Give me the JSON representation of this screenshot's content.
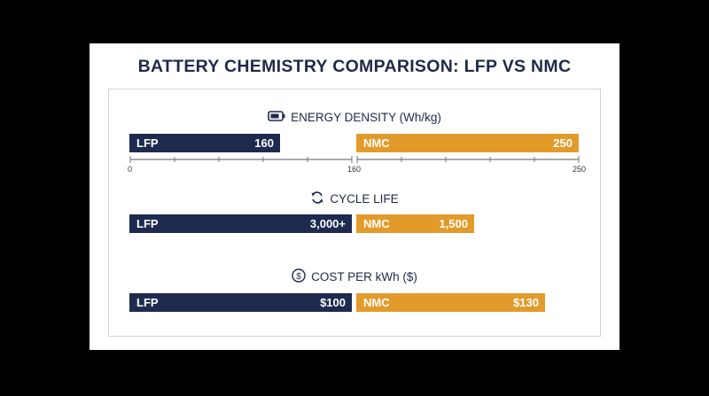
{
  "title": "BATTERY CHEMISTRY COMPARISON: LFP VS NMC",
  "colors": {
    "lfp": "#1e2b4f",
    "nmc": "#e29b2b",
    "text": "#1f2a4a"
  },
  "sections": [
    {
      "title": "ENERGY DENSITY (Wh/kg)",
      "icon": "battery-icon"
    },
    {
      "title": "CYCLE LIFE",
      "icon": "cycle-arrows-icon"
    },
    {
      "title": "COST PER kWh ($)",
      "icon": "dollar-icon"
    }
  ],
  "chart_data": [
    {
      "type": "bar",
      "title": "ENERGY DENSITY (Wh/kg)",
      "series": [
        {
          "name": "LFP",
          "value": 160,
          "label": "160"
        },
        {
          "name": "NMC",
          "value": 250,
          "label": "250"
        }
      ],
      "tick_labels": [
        "0",
        "160",
        "250"
      ]
    },
    {
      "type": "bar",
      "title": "CYCLE LIFE",
      "series": [
        {
          "name": "LFP",
          "value": 3000,
          "label": "3,000+"
        },
        {
          "name": "NMC",
          "value": 1500,
          "label": "1,500"
        }
      ]
    },
    {
      "type": "bar",
      "title": "COST PER kWh ($)",
      "series": [
        {
          "name": "LFP",
          "value": 100,
          "label": "$100"
        },
        {
          "name": "NMC",
          "value": 130,
          "label": "$130"
        }
      ]
    }
  ]
}
